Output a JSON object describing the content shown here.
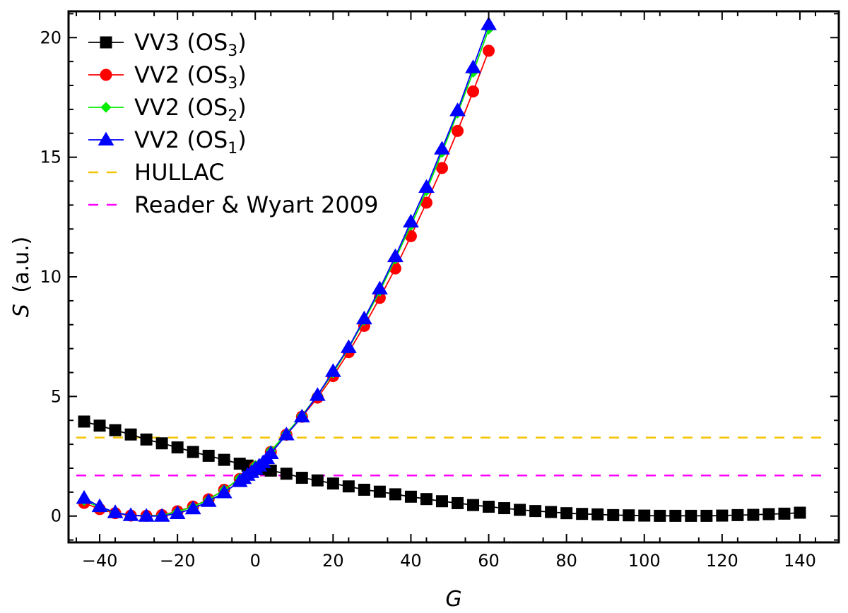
{
  "chart_data": {
    "type": "line",
    "xlabel": "G",
    "ylabel_symbol": "S",
    "ylabel_unit": "(a.u.)",
    "xlim": [
      -48,
      150
    ],
    "ylim": [
      -1.1,
      21.1
    ],
    "x_ticks": [
      -40,
      -20,
      0,
      20,
      40,
      60,
      80,
      100,
      120,
      140
    ],
    "y_ticks": [
      0,
      5,
      10,
      15,
      20
    ],
    "grid": false,
    "legend_position": "top-left",
    "series": [
      {
        "name": "VV3 (OS3)",
        "label_main": "VV3 (OS",
        "label_sub": "3",
        "label_end": ")",
        "color": "#000000",
        "marker": "square",
        "line": "solid",
        "x": [
          -44,
          -40,
          -36,
          -32,
          -28,
          -24,
          -20,
          -16,
          -12,
          -8,
          -4,
          -2,
          0,
          2,
          4,
          8,
          12,
          16,
          20,
          24,
          28,
          32,
          36,
          40,
          44,
          48,
          52,
          56,
          60,
          64,
          68,
          72,
          76,
          80,
          84,
          88,
          92,
          96,
          100,
          104,
          108,
          112,
          116,
          120,
          124,
          128,
          132,
          136,
          140
        ],
        "y": [
          3.95,
          3.78,
          3.59,
          3.41,
          3.2,
          3.04,
          2.87,
          2.68,
          2.52,
          2.35,
          2.19,
          2.11,
          2.04,
          1.96,
          1.9,
          1.77,
          1.6,
          1.49,
          1.36,
          1.24,
          1.1,
          1.02,
          0.91,
          0.81,
          0.71,
          0.62,
          0.54,
          0.46,
          0.39,
          0.33,
          0.26,
          0.21,
          0.17,
          0.12,
          0.09,
          0.07,
          0.04,
          0.03,
          0.02,
          0.01,
          0.01,
          0.01,
          0.01,
          0.02,
          0.04,
          0.05,
          0.08,
          0.1,
          0.14
        ]
      },
      {
        "name": "VV2 (OS3)",
        "label_main": "VV2 (OS",
        "label_sub": "3",
        "label_end": ")",
        "color": "#ff0000",
        "marker": "circle",
        "line": "solid",
        "x": [
          -44,
          -40,
          -36,
          -32,
          -28,
          -24,
          -20,
          -16,
          -12,
          -8,
          -4,
          0,
          4,
          8,
          12,
          16,
          20,
          24,
          28,
          32,
          36,
          40,
          44,
          48,
          52,
          56,
          60
        ],
        "y": [
          0.55,
          0.29,
          0.12,
          0.02,
          0.01,
          0.04,
          0.2,
          0.4,
          0.7,
          1.1,
          1.55,
          2.06,
          2.68,
          3.4,
          4.15,
          4.95,
          5.85,
          6.85,
          7.95,
          9.12,
          10.35,
          11.7,
          13.1,
          14.55,
          16.1,
          17.75,
          19.45
        ]
      },
      {
        "name": "VV2 (OS2)",
        "label_main": "VV2 (OS",
        "label_sub": "2",
        "label_end": ")",
        "color": "#00ee00",
        "marker": "diamond",
        "line": "solid",
        "x": [
          -44,
          -40,
          -36,
          -32,
          -28,
          -24,
          -20,
          -16,
          -12,
          -8,
          -4,
          0,
          4,
          8,
          12,
          16,
          20,
          24,
          28,
          32,
          36,
          40,
          44,
          48,
          52,
          56,
          60
        ],
        "y": [
          0.65,
          0.36,
          0.14,
          0.03,
          0.01,
          0.03,
          0.18,
          0.39,
          0.69,
          1.1,
          1.58,
          2.12,
          2.73,
          3.45,
          4.2,
          5.05,
          5.98,
          7.02,
          8.18,
          9.4,
          10.75,
          12.15,
          13.6,
          15.2,
          16.85,
          18.55,
          20.35
        ]
      },
      {
        "name": "VV2 (OS1)",
        "label_main": "VV2 (OS",
        "label_sub": "1",
        "label_end": ")",
        "color": "#0000ff",
        "marker": "triangle",
        "line": "solid",
        "x": [
          -44,
          -40,
          -36,
          -32,
          -28,
          -24,
          -20,
          -16,
          -12,
          -8,
          -4,
          -3,
          -2,
          -1,
          0,
          1,
          2,
          3,
          4,
          8,
          12,
          16,
          20,
          24,
          28,
          32,
          36,
          40,
          44,
          48,
          52,
          56,
          60
        ],
        "y": [
          0.75,
          0.4,
          0.15,
          0.03,
          0.0,
          0.0,
          0.11,
          0.31,
          0.62,
          0.98,
          1.45,
          1.58,
          1.71,
          1.83,
          1.97,
          2.1,
          2.24,
          2.41,
          2.62,
          3.4,
          4.15,
          5.05,
          6.05,
          7.05,
          8.25,
          9.5,
          10.85,
          12.3,
          13.75,
          15.35,
          16.95,
          18.75,
          20.55
        ]
      },
      {
        "name": "HULLAC",
        "label_main": "HULLAC",
        "label_sub": "",
        "label_end": "",
        "color": "#f5c400",
        "marker": "none",
        "line": "dashed",
        "x": [
          -46,
          146
        ],
        "y": [
          3.28,
          3.28
        ]
      },
      {
        "name": "Reader & Wyart 2009",
        "label_main": "Reader & Wyart 2009",
        "label_sub": "",
        "label_end": "",
        "color": "#ff00ff",
        "marker": "none",
        "line": "dashed",
        "x": [
          -46,
          146
        ],
        "y": [
          1.7,
          1.7
        ]
      }
    ]
  }
}
